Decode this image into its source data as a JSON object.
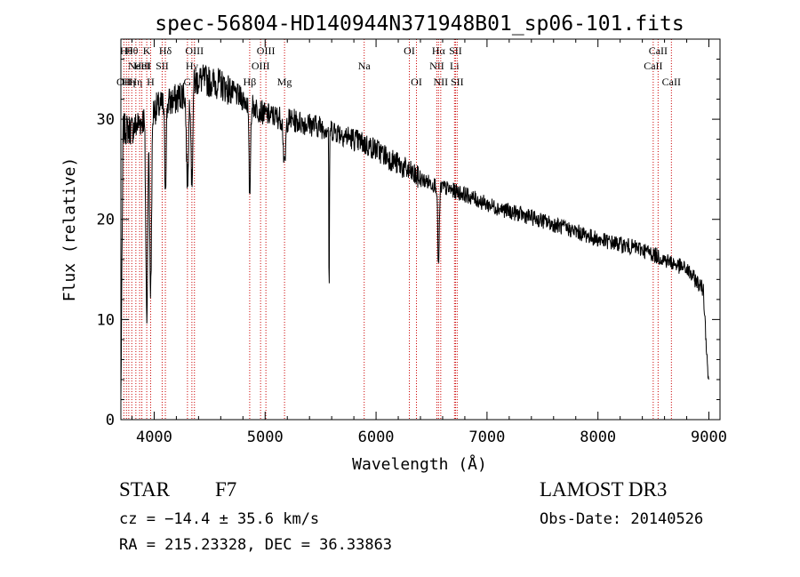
{
  "chart_data": {
    "type": "line",
    "title": "spec-56804-HD140944N371948B01_sp06-101.fits",
    "xlabel": "Wavelength (Å)",
    "ylabel": "Flux (relative)",
    "xlim": [
      3700,
      9100
    ],
    "ylim": [
      0,
      38
    ],
    "xticks": [
      4000,
      5000,
      6000,
      7000,
      8000,
      9000
    ],
    "yticks": [
      0,
      10,
      20,
      30
    ],
    "line_color": "#000000",
    "marker_color": "#cc0000",
    "continuum": [
      {
        "x": 3700,
        "y": 2
      },
      {
        "x": 3720,
        "y": 29
      },
      {
        "x": 3800,
        "y": 29
      },
      {
        "x": 3900,
        "y": 30
      },
      {
        "x": 4000,
        "y": 31
      },
      {
        "x": 4200,
        "y": 32
      },
      {
        "x": 4400,
        "y": 34
      },
      {
        "x": 4600,
        "y": 33.5
      },
      {
        "x": 4800,
        "y": 32
      },
      {
        "x": 5000,
        "y": 30.5
      },
      {
        "x": 5200,
        "y": 30
      },
      {
        "x": 5400,
        "y": 29.5
      },
      {
        "x": 5600,
        "y": 29
      },
      {
        "x": 5800,
        "y": 28
      },
      {
        "x": 6000,
        "y": 27
      },
      {
        "x": 6200,
        "y": 25.5
      },
      {
        "x": 6400,
        "y": 24
      },
      {
        "x": 6600,
        "y": 23.2
      },
      {
        "x": 6800,
        "y": 22.5
      },
      {
        "x": 7000,
        "y": 21.5
      },
      {
        "x": 7200,
        "y": 20.8
      },
      {
        "x": 7400,
        "y": 20.2
      },
      {
        "x": 7600,
        "y": 19.5
      },
      {
        "x": 7800,
        "y": 18.8
      },
      {
        "x": 8000,
        "y": 18
      },
      {
        "x": 8200,
        "y": 17.5
      },
      {
        "x": 8400,
        "y": 17
      },
      {
        "x": 8600,
        "y": 16
      },
      {
        "x": 8800,
        "y": 15
      },
      {
        "x": 8950,
        "y": 13
      },
      {
        "x": 9000,
        "y": 3
      }
    ],
    "absorption_features": [
      {
        "x": 3933,
        "depth": 20,
        "width": 12
      },
      {
        "x": 3968,
        "depth": 18,
        "width": 12
      },
      {
        "x": 4101,
        "depth": 8,
        "width": 10
      },
      {
        "x": 4300,
        "depth": 9,
        "width": 14
      },
      {
        "x": 4340,
        "depth": 10,
        "width": 10
      },
      {
        "x": 4861,
        "depth": 9,
        "width": 10
      },
      {
        "x": 5175,
        "depth": 5,
        "width": 14
      },
      {
        "x": 5577,
        "depth": 17,
        "width": 4
      },
      {
        "x": 6563,
        "depth": 8,
        "width": 10
      }
    ],
    "line_markers": [
      {
        "x": 3727,
        "label": "OII",
        "row": 2
      },
      {
        "x": 3750,
        "label": "Hθ",
        "row": 0
      },
      {
        "x": 3771,
        "label": "Hη",
        "row": 2
      },
      {
        "x": 3798,
        "label": "Hθ",
        "row": 0
      },
      {
        "x": 3835,
        "label": "Hη",
        "row": 2
      },
      {
        "x": 3869,
        "label": "NeIII",
        "row": 1
      },
      {
        "x": 3889,
        "label": "HeI",
        "row": 1
      },
      {
        "x": 3933,
        "label": "K",
        "row": 0
      },
      {
        "x": 3968,
        "label": "H",
        "row": 2
      },
      {
        "x": 4072,
        "label": "SII",
        "row": 1
      },
      {
        "x": 4101,
        "label": "Hδ",
        "row": 0
      },
      {
        "x": 4300,
        "label": "G",
        "row": 2
      },
      {
        "x": 4340,
        "label": "Hγ",
        "row": 1
      },
      {
        "x": 4363,
        "label": "OIII",
        "row": 0
      },
      {
        "x": 4861,
        "label": "Hβ",
        "row": 2
      },
      {
        "x": 4959,
        "label": "OIII",
        "row": 1
      },
      {
        "x": 5007,
        "label": "OIII",
        "row": 0
      },
      {
        "x": 5175,
        "label": "Mg",
        "row": 2
      },
      {
        "x": 5893,
        "label": "Na",
        "row": 1
      },
      {
        "x": 6300,
        "label": "OI",
        "row": 0
      },
      {
        "x": 6364,
        "label": "OI",
        "row": 2
      },
      {
        "x": 6548,
        "label": "NII",
        "row": 1
      },
      {
        "x": 6563,
        "label": "Hα",
        "row": 0
      },
      {
        "x": 6583,
        "label": "NII",
        "row": 2
      },
      {
        "x": 6707,
        "label": "Li",
        "row": 1
      },
      {
        "x": 6716,
        "label": "SII",
        "row": 0
      },
      {
        "x": 6731,
        "label": "SII",
        "row": 2
      },
      {
        "x": 8498,
        "label": "CaII",
        "row": 1
      },
      {
        "x": 8542,
        "label": "CaII",
        "row": 0
      },
      {
        "x": 8662,
        "label": "CaII",
        "row": 2
      }
    ]
  },
  "info": {
    "object_class": "STAR",
    "subclass": "F7",
    "survey": "LAMOST DR3",
    "redshift_text": "cz = −14.4 ± 35.6 km/s",
    "obs_date": "Obs-Date: 20140526",
    "coords": "RA = 215.23328, DEC =  36.33863"
  }
}
